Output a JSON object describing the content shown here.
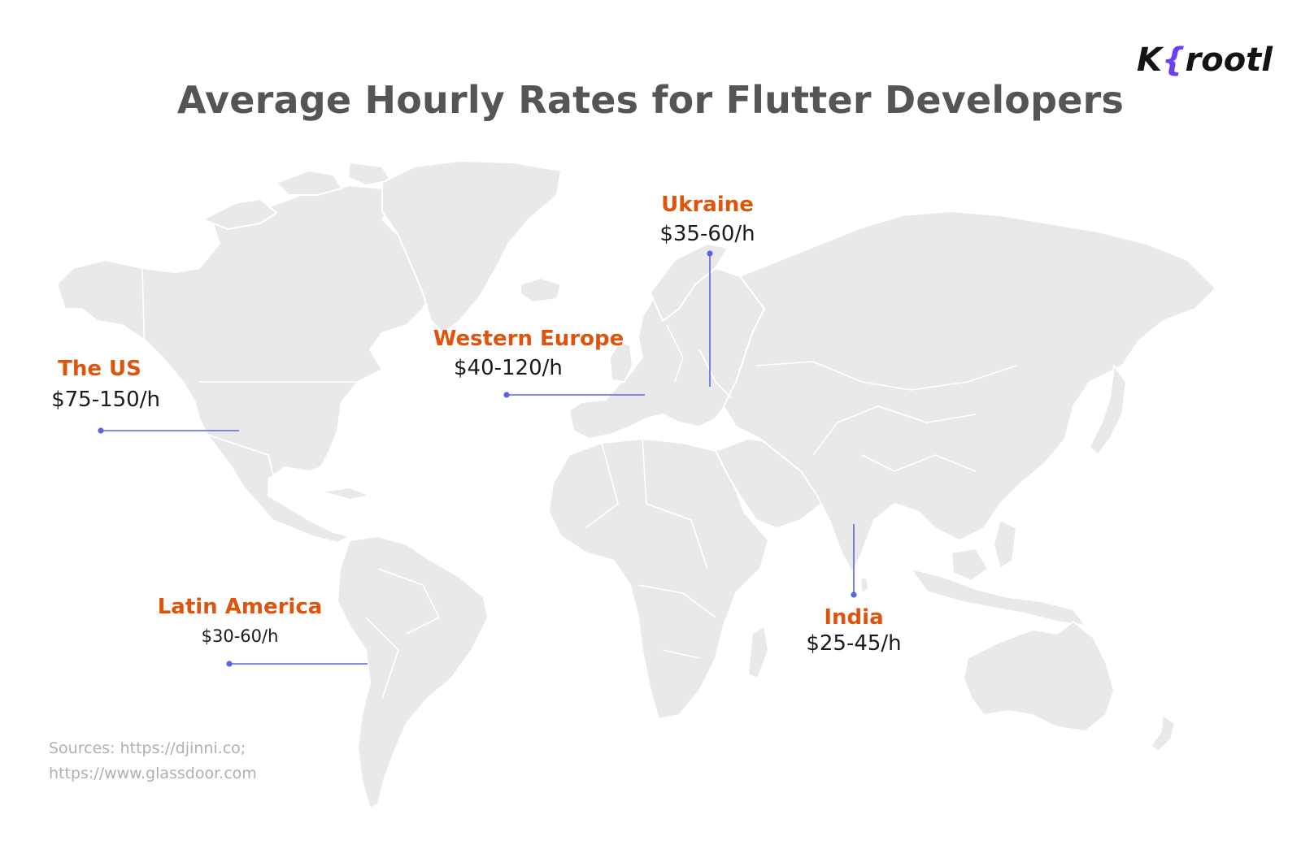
{
  "title": "Average Hourly Rates for Flutter Developers",
  "logo": {
    "text_prefix": "K",
    "text_main": "rootl",
    "description": "Krootl brand logo"
  },
  "regions": {
    "us": {
      "name": "The US",
      "rate": "$75-150/h"
    },
    "western_europe": {
      "name": "Western Europe",
      "rate": "$40-120/h"
    },
    "ukraine": {
      "name": "Ukraine",
      "rate": "$35-60/h"
    },
    "latin_america": {
      "name": "Latin America",
      "rate": "$30-60/h"
    },
    "india": {
      "name": "India",
      "rate": "$25-45/h"
    }
  },
  "sources": {
    "line1": "Sources: https://djinni.co;",
    "line2": "https://www.glassdoor.com"
  },
  "colors": {
    "title": "#555555",
    "region_name": "#e0530d",
    "rate_text": "#1a1a1a",
    "leader_line": "#5865e6",
    "land": "#e9e9e9",
    "logo_accent": "#6e3ef5",
    "sources_text": "#b0b0b0"
  }
}
